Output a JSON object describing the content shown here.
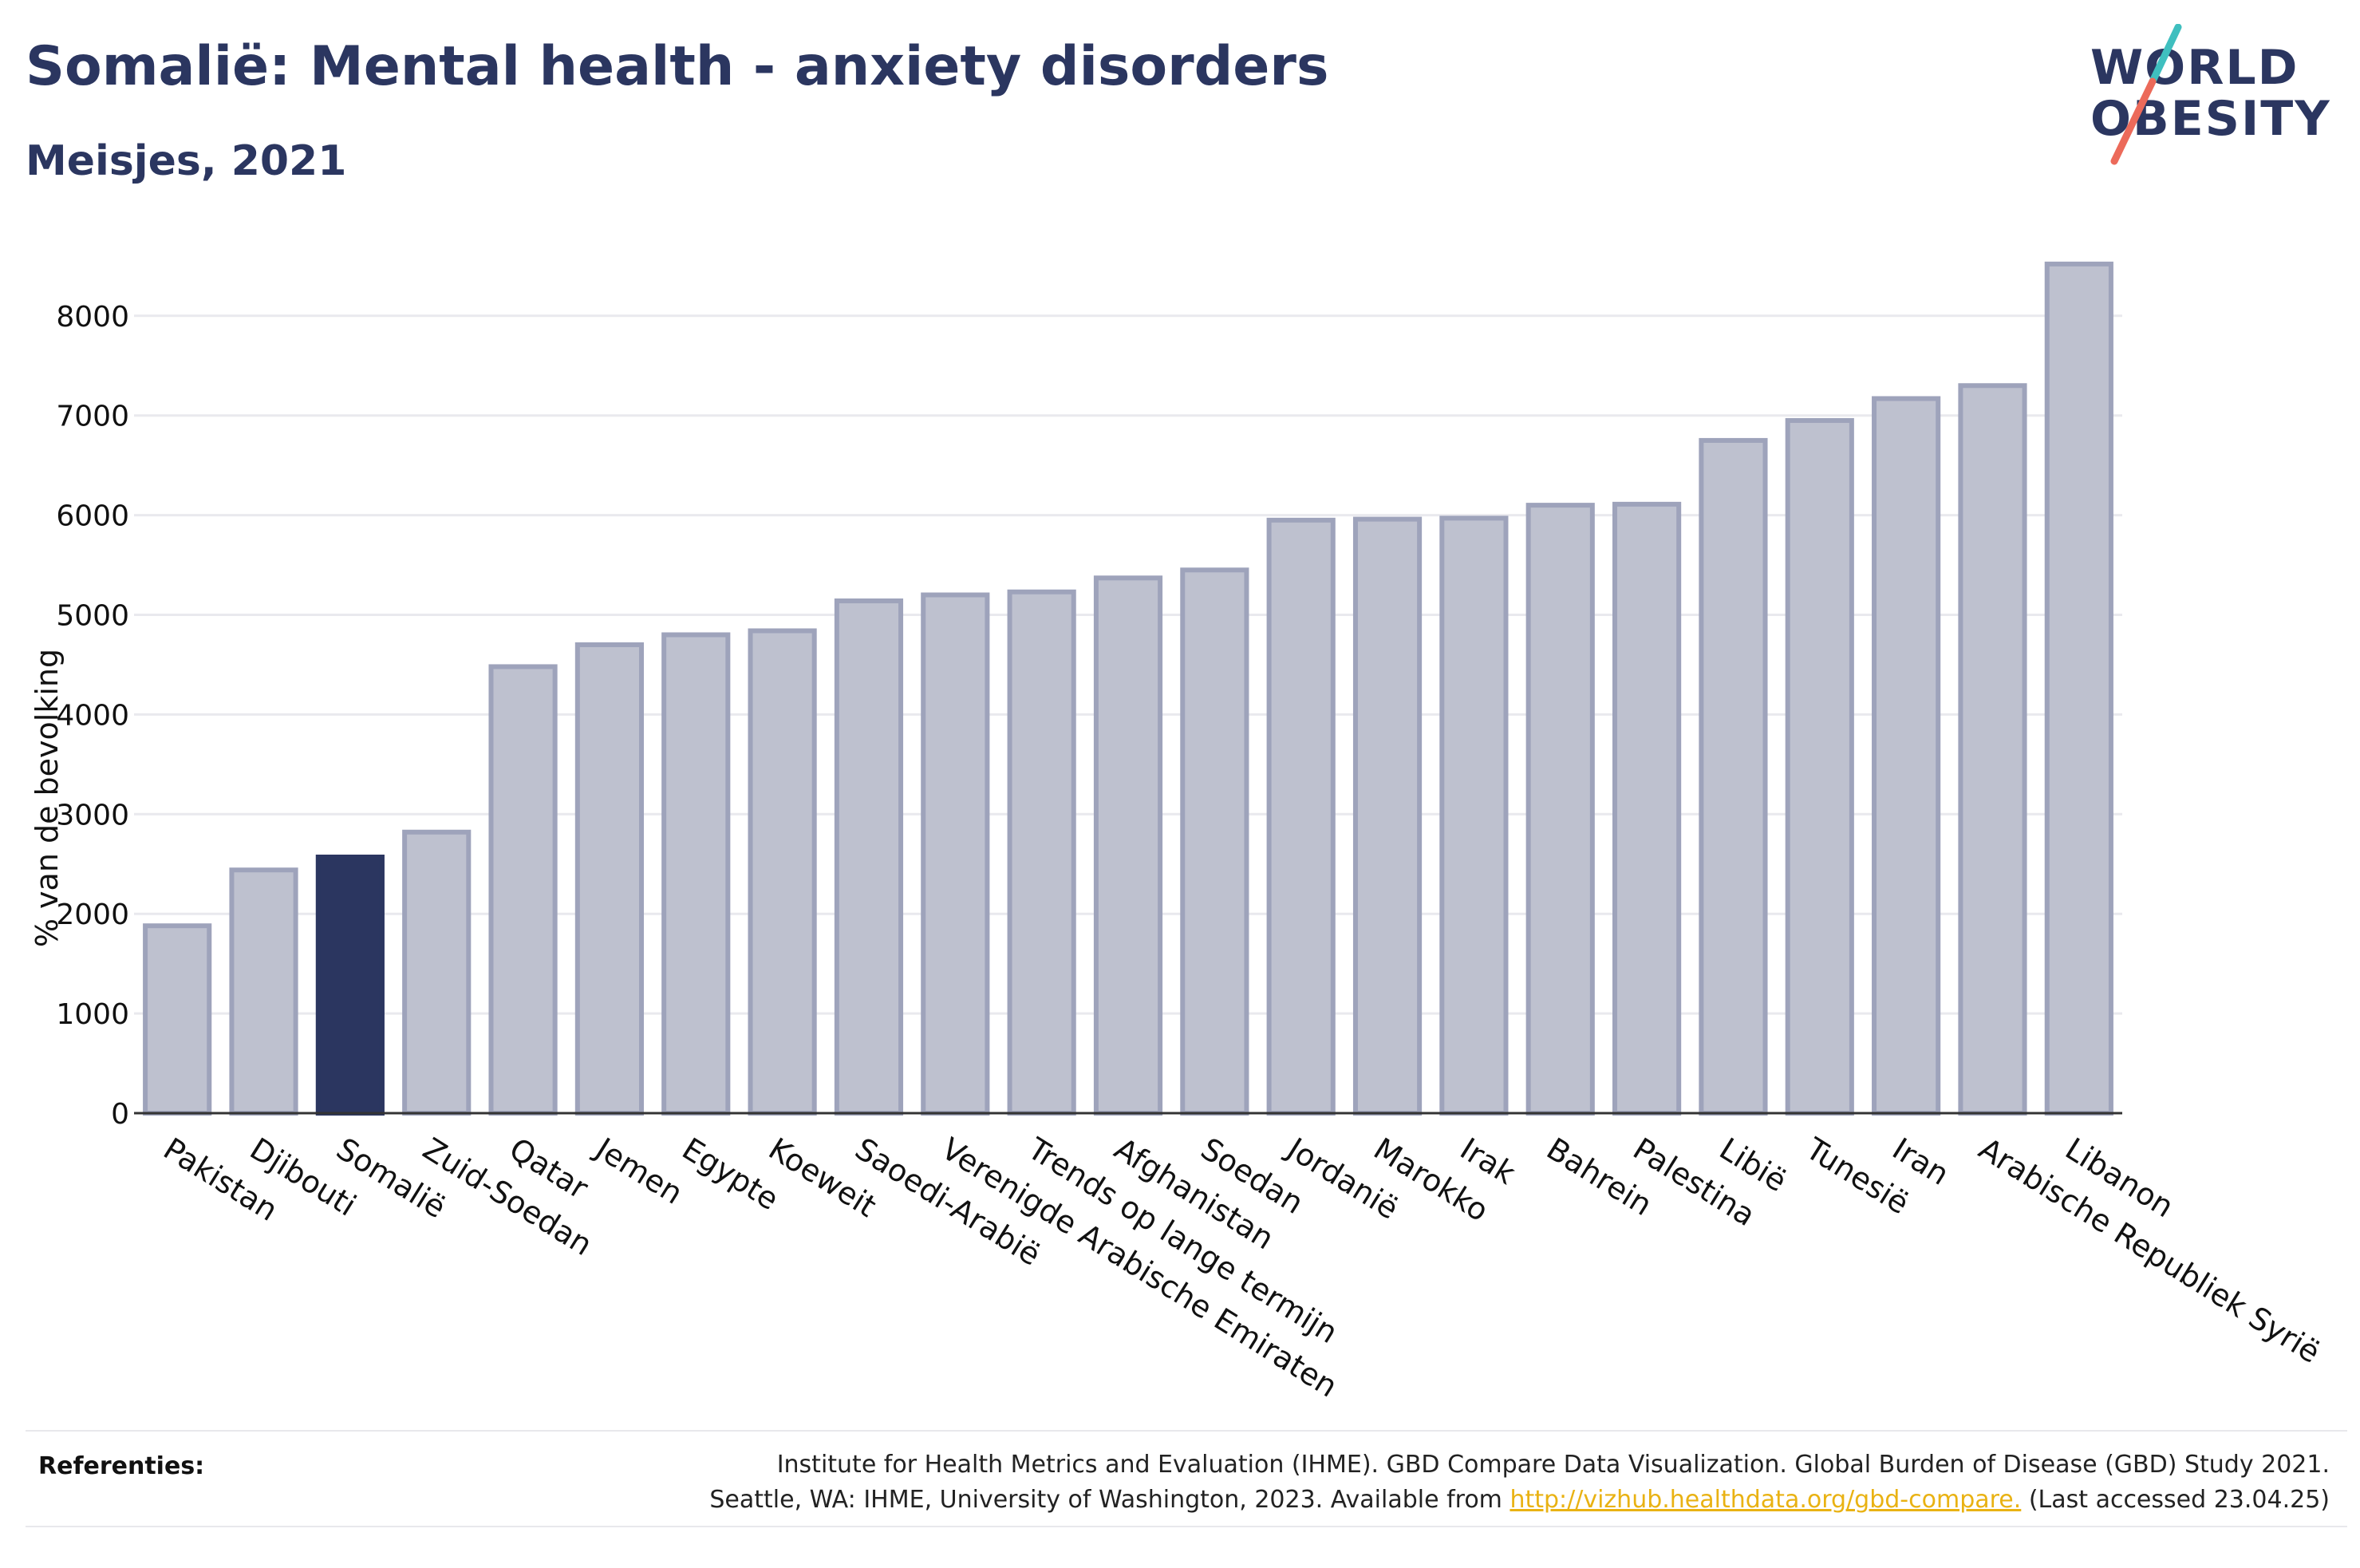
{
  "header": {
    "title": "Somalië: Mental health - anxiety disorders",
    "subtitle": "Meisjes, 2021"
  },
  "logo": {
    "line1": "WORLD",
    "line2": "OBESITY"
  },
  "colors": {
    "bar": "#bec1cf",
    "bar_edge": "#9ea3bb",
    "highlight": "#2b3660",
    "grid": "#e9e9ee",
    "axis": "#333333",
    "logo_teal": "#3fbfbf",
    "logo_coral": "#ec6a5a"
  },
  "chart_data": {
    "type": "bar",
    "ylabel": "% van de bevolking",
    "ylim": [
      0,
      9000
    ],
    "yticks": [
      0,
      1000,
      2000,
      3000,
      4000,
      5000,
      6000,
      7000,
      8000
    ],
    "grid": true,
    "highlight": "Somalië",
    "categories": [
      "Pakistan",
      "Djibouti",
      "Somalië",
      "Zuid-Soedan",
      "Qatar",
      "Jemen",
      "Egypte",
      "Koeweit",
      "Saoedi-Arabië",
      "Verenigde Arabische Emiraten",
      "Trends op lange termijn",
      "Afghanistan",
      "Soedan",
      "Jordanië",
      "Marokko",
      "Irak",
      "Bahrein",
      "Palestina",
      "Libië",
      "Tunesië",
      "Iran",
      "Arabische Republiek Syrië",
      "Libanon"
    ],
    "values": [
      1880,
      2440,
      2570,
      2820,
      4480,
      4700,
      4800,
      4840,
      5140,
      5200,
      5230,
      5370,
      5450,
      5950,
      5960,
      5970,
      6100,
      6110,
      6750,
      6950,
      7170,
      7300,
      8520
    ]
  },
  "references": {
    "label": "Referenties:",
    "line1": "Institute for Health Metrics and Evaluation (IHME). GBD Compare Data Visualization. Global Burden of Disease (GBD) Study 2021.",
    "line2_prefix": "Seattle, WA: IHME, University of Washington, 2023. Available from ",
    "link": "http://vizhub.healthdata.org/gbd-compare.",
    "line2_suffix": " (Last accessed 23.04.25)"
  }
}
